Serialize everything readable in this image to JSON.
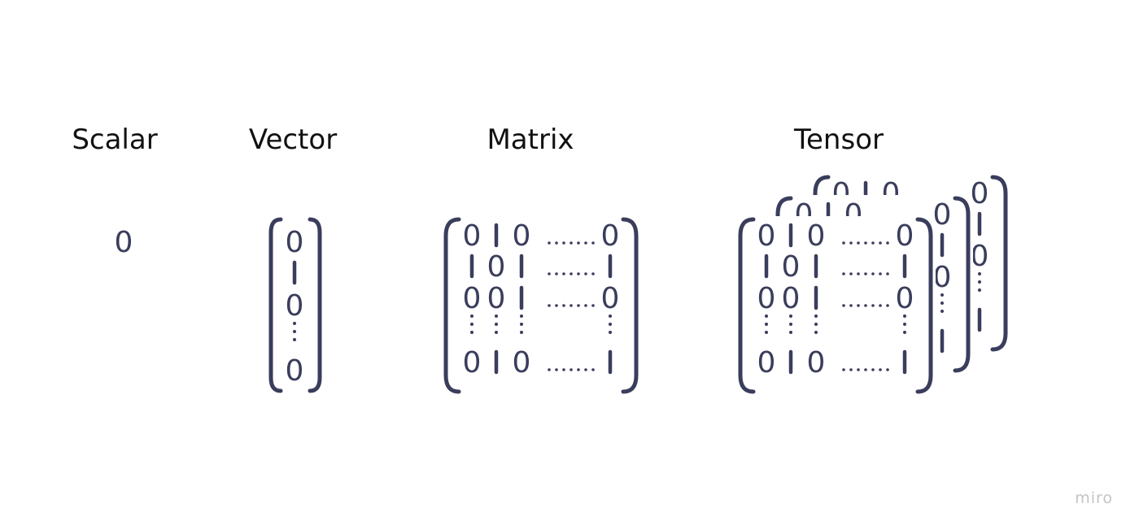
{
  "labels": {
    "scalar": "Scalar",
    "vector": "Vector",
    "matrix": "Matrix",
    "tensor": "Tensor"
  },
  "scalar_value": "0",
  "vector_values": [
    "0",
    "1",
    "0",
    "⋮",
    "0"
  ],
  "matrix_rows": [
    [
      "0",
      "1",
      "0",
      "……",
      "0"
    ],
    [
      "1",
      "0",
      "1",
      "……",
      "1"
    ],
    [
      "0",
      "0",
      "1",
      "……",
      "0"
    ],
    [
      "⋮",
      "⋮",
      "⋮",
      "",
      "⋮"
    ],
    [
      "0",
      "1",
      "0",
      "……",
      "1"
    ]
  ],
  "tensor_layers": 3,
  "watermark": "miro",
  "colors": {
    "ink": "#3a3d5c",
    "title": "#111111",
    "watermark": "#c4c4c8"
  }
}
